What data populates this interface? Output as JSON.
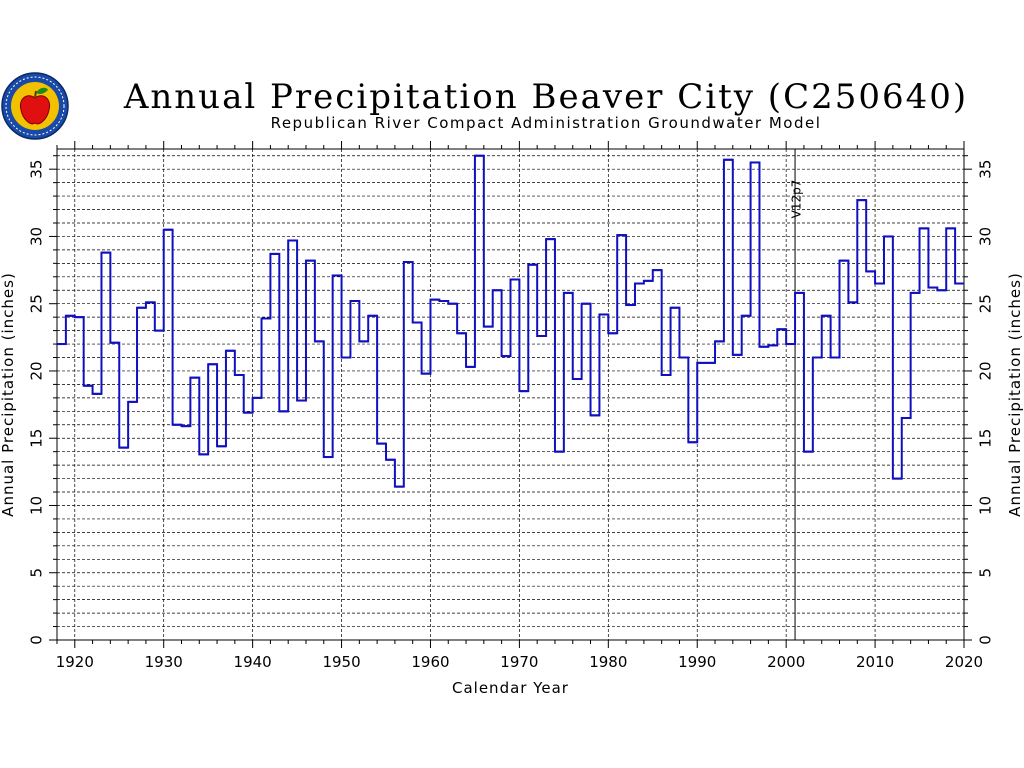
{
  "colors": {
    "series": "#1010c0",
    "grid": "#000000",
    "logo_ring": "#1a4aa8",
    "logo_fill": "#f2c200",
    "logo_apple": "#e01010",
    "logo_leaf": "#1e8a1e"
  },
  "logo": {
    "icon": "apple-seal-logo"
  },
  "chart_data": {
    "type": "line",
    "step": true,
    "title": "Annual Precipitation Beaver City (C250640)",
    "subtitle": "Republican River Compact Administration Groundwater Model",
    "xlabel": "Calendar Year",
    "ylabel_left": "Annual Precipitation (inches)",
    "ylabel_right": "Annual Precipitation (inches)",
    "xlim": [
      1918,
      2020
    ],
    "ylim": [
      0,
      36.5
    ],
    "x_ticks": [
      1920,
      1930,
      1940,
      1950,
      1960,
      1970,
      1980,
      1990,
      2000,
      2010,
      2020
    ],
    "y_ticks": [
      0,
      5,
      10,
      15,
      20,
      25,
      30,
      35
    ],
    "grid": true,
    "annotations": [
      {
        "x": 2001,
        "text": "V12p7"
      }
    ],
    "series": [
      {
        "x": [
          1918,
          1919,
          1920,
          1921,
          1922,
          1923,
          1924,
          1925,
          1926,
          1927,
          1928,
          1929,
          1930,
          1931,
          1932,
          1933,
          1934,
          1935,
          1936,
          1937,
          1938,
          1939,
          1940,
          1941,
          1942,
          1943,
          1944,
          1945,
          1946,
          1947,
          1948,
          1949,
          1950,
          1951,
          1952,
          1953,
          1954,
          1955,
          1956,
          1957,
          1958,
          1959,
          1960,
          1961,
          1962,
          1963,
          1964,
          1965,
          1966,
          1967,
          1968,
          1969,
          1970,
          1971,
          1972,
          1973,
          1974,
          1975,
          1976,
          1977,
          1978,
          1979,
          1980,
          1981,
          1982,
          1983,
          1984,
          1985,
          1986,
          1987,
          1988,
          1989,
          1990,
          1991,
          1992,
          1993,
          1994,
          1995,
          1996,
          1997,
          1998,
          1999,
          2000,
          2001,
          2002,
          2003,
          2004,
          2005,
          2006,
          2007,
          2008,
          2009,
          2010,
          2011,
          2012,
          2013,
          2014,
          2015,
          2016,
          2017,
          2018,
          2019
        ],
        "values": [
          22.0,
          24.1,
          24.0,
          18.9,
          18.3,
          28.8,
          22.1,
          14.3,
          17.7,
          24.7,
          25.1,
          23.0,
          30.5,
          16.0,
          15.9,
          19.5,
          13.8,
          20.5,
          14.4,
          21.5,
          19.7,
          16.9,
          18.0,
          23.9,
          28.7,
          17.0,
          29.7,
          17.8,
          28.2,
          22.2,
          13.6,
          27.1,
          21.0,
          25.2,
          22.2,
          24.1,
          14.6,
          13.4,
          11.4,
          28.1,
          23.6,
          19.8,
          25.3,
          25.2,
          25.0,
          22.8,
          20.3,
          36.0,
          23.3,
          26.0,
          21.1,
          26.8,
          18.5,
          27.9,
          22.6,
          29.8,
          14.0,
          25.8,
          19.4,
          25.0,
          16.7,
          24.2,
          22.8,
          30.1,
          24.9,
          26.5,
          26.7,
          27.5,
          19.7,
          24.7,
          21.0,
          14.7,
          20.6,
          20.6,
          22.2,
          35.7,
          21.2,
          24.1,
          35.5,
          21.8,
          21.9,
          23.1,
          22.0,
          25.8,
          14.0,
          21.0,
          24.1,
          21.0,
          28.2,
          25.1,
          32.7,
          27.4,
          26.5,
          30.0,
          12.0,
          16.5,
          25.8,
          30.6,
          26.2,
          26.0,
          30.6,
          26.5
        ]
      }
    ]
  }
}
